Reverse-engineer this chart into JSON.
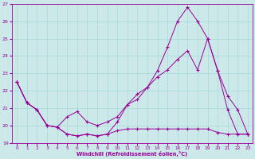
{
  "xlabel": "Windchill (Refroidissement éolien,°C)",
  "bg_color": "#cce8e8",
  "line_color": "#990099",
  "grid_color": "#aadddd",
  "xlim": [
    -0.5,
    23.5
  ],
  "ylim": [
    19,
    27
  ],
  "xticks": [
    0,
    1,
    2,
    3,
    4,
    5,
    6,
    7,
    8,
    9,
    10,
    11,
    12,
    13,
    14,
    15,
    16,
    17,
    18,
    19,
    20,
    21,
    22,
    23
  ],
  "yticks": [
    19,
    20,
    21,
    22,
    23,
    24,
    25,
    26,
    27
  ],
  "series": [
    {
      "x": [
        0,
        1,
        2,
        3,
        4,
        5,
        6,
        7,
        8,
        9,
        10,
        11,
        12,
        13,
        14,
        15,
        16,
        17,
        18,
        19,
        20,
        21,
        22,
        23
      ],
      "y": [
        22.5,
        21.3,
        20.9,
        20.0,
        19.9,
        19.5,
        19.4,
        19.5,
        19.4,
        19.5,
        20.2,
        21.2,
        21.5,
        22.2,
        23.15,
        24.5,
        26.0,
        26.8,
        26.0,
        25.0,
        23.15,
        20.9,
        19.5,
        19.5
      ]
    },
    {
      "x": [
        0,
        1,
        2,
        3,
        4,
        5,
        6,
        7,
        8,
        9,
        10,
        11,
        12,
        13,
        14,
        15,
        16,
        17,
        18,
        19,
        20,
        21,
        22,
        23
      ],
      "y": [
        22.5,
        21.3,
        20.9,
        20.0,
        19.9,
        20.5,
        20.8,
        20.2,
        20.0,
        20.2,
        20.5,
        21.2,
        21.8,
        22.2,
        22.8,
        23.2,
        23.8,
        24.3,
        23.2,
        25.0,
        23.15,
        21.7,
        20.9,
        19.5
      ]
    },
    {
      "x": [
        0,
        1,
        2,
        3,
        4,
        5,
        6,
        7,
        8,
        9,
        10,
        11,
        12,
        13,
        14,
        15,
        16,
        17,
        18,
        19,
        20,
        21,
        22,
        23
      ],
      "y": [
        22.5,
        21.3,
        20.9,
        20.0,
        19.9,
        19.5,
        19.4,
        19.5,
        19.4,
        19.5,
        19.7,
        19.8,
        19.8,
        19.8,
        19.8,
        19.8,
        19.8,
        19.8,
        19.8,
        19.8,
        19.6,
        19.5,
        19.5,
        19.5
      ]
    }
  ]
}
